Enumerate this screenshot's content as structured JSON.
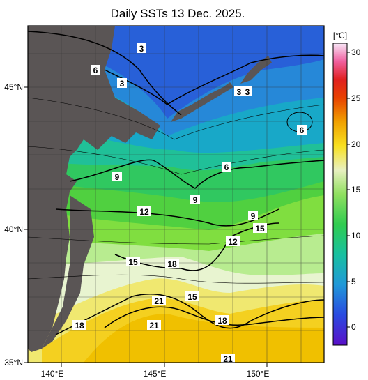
{
  "title": "Daily SSTs 13 Dec. 2025.",
  "lat_labels": [
    "45°N",
    "40°N",
    "35°N"
  ],
  "lon_labels": [
    "140°E",
    "145°E",
    "150°E"
  ],
  "colorbar": {
    "unit": "[°C]",
    "ticks": [
      "30",
      "25",
      "20",
      "15",
      "10",
      "5",
      "0"
    ],
    "colors": [
      "#5a10c8",
      "#3a38d8",
      "#2a68e0",
      "#2098d8",
      "#18b8b0",
      "#20c878",
      "#40d040",
      "#80e040",
      "#c8f0b0",
      "#f0f0c8",
      "#f8e020",
      "#f8c000",
      "#f09000",
      "#e85000",
      "#e02000",
      "#f06090",
      "#f0b0e0",
      "#f8e8f8"
    ]
  },
  "contour_labels": [
    "3",
    "3",
    "3",
    "3",
    "6",
    "6",
    "6",
    "9",
    "9",
    "9",
    "12",
    "12",
    "15",
    "15",
    "15",
    "18",
    "18",
    "18",
    "21",
    "21",
    "21"
  ],
  "land_color": "#5a5555"
}
